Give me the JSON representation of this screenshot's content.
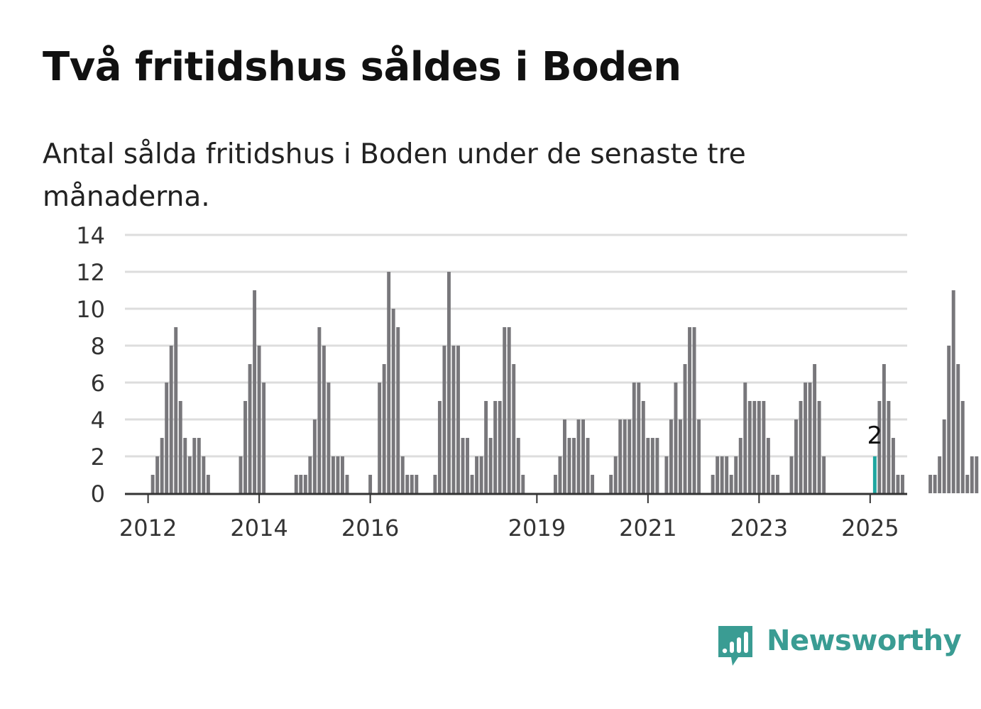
{
  "title": "Två fritidshus såldes i Boden",
  "subtitle": "Antal sålda fritidshus i Boden under de senaste tre månaderna.",
  "brand": {
    "name": "Newsworthy",
    "color": "#3a9c93"
  },
  "colors": {
    "bar": "#78777b",
    "highlight": "#1fa6a0",
    "grid": "#dddddd",
    "axis": "#333333"
  },
  "chart_data": {
    "type": "bar",
    "x_axis": {
      "type": "time",
      "unit": "month",
      "range": [
        "2011-08",
        "2025-09"
      ]
    },
    "ylim": [
      0,
      14
    ],
    "y_ticks": [
      0,
      2,
      4,
      6,
      8,
      10,
      12,
      14
    ],
    "x_tick_labels": [
      "2012",
      "2014",
      "2016",
      "2019",
      "2021",
      "2023",
      "2025"
    ],
    "grid": true,
    "start": "2012-01",
    "values": [
      0,
      1,
      2,
      3,
      6,
      8,
      9,
      5,
      3,
      2,
      3,
      3,
      2,
      1,
      0,
      0,
      0,
      0,
      0,
      0,
      2,
      5,
      7,
      11,
      8,
      6,
      0,
      0,
      0,
      0,
      0,
      0,
      1,
      1,
      1,
      2,
      4,
      9,
      8,
      6,
      2,
      2,
      2,
      1,
      0,
      0,
      0,
      0,
      1,
      0,
      6,
      7,
      12,
      10,
      9,
      2,
      1,
      1,
      1,
      0,
      0,
      0,
      1,
      5,
      8,
      12,
      8,
      8,
      3,
      3,
      1,
      2,
      2,
      5,
      3,
      5,
      5,
      9,
      9,
      7,
      3,
      1,
      0,
      0,
      0,
      0,
      0,
      0,
      1,
      2,
      4,
      3,
      3,
      4,
      4,
      3,
      1,
      0,
      0,
      0,
      1,
      2,
      4,
      4,
      4,
      6,
      6,
      5,
      3,
      3,
      3,
      0,
      2,
      4,
      6,
      4,
      7,
      9,
      9,
      4,
      0,
      0,
      1,
      2,
      2,
      2,
      1,
      2,
      3,
      6,
      5,
      5,
      5,
      5,
      3,
      1,
      1,
      0,
      0,
      2,
      4,
      5,
      6,
      6,
      7,
      5,
      2,
      0,
      0,
      0,
      0,
      0,
      0,
      0,
      0,
      0,
      0,
      2,
      5,
      7,
      5,
      3,
      1,
      1,
      0,
      0,
      0,
      0,
      0,
      1,
      1,
      2,
      4,
      8,
      11,
      7,
      5,
      1,
      2,
      2
    ],
    "highlight": {
      "month": "2025-02",
      "value": 2,
      "label": "2"
    }
  }
}
